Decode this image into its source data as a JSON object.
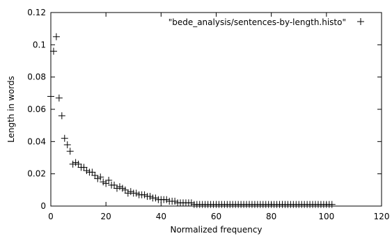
{
  "chart_data": {
    "type": "scatter",
    "xlabel": "Normalized frequency",
    "ylabel": "Length in words",
    "xlim": [
      0,
      120
    ],
    "ylim": [
      0,
      0.12
    ],
    "xticks": [
      "0",
      "20",
      "40",
      "60",
      "80",
      "100",
      "120"
    ],
    "yticks": [
      "0",
      "0.02",
      "0.04",
      "0.06",
      "0.08",
      "0.1",
      "0.12"
    ],
    "grid": false,
    "legend_position": "top-right",
    "marker": "plus",
    "series": [
      {
        "name": "\"bede_analysis/sentences-by-length.histo\"",
        "x": [
          0,
          1,
          2,
          3,
          4,
          5,
          6,
          7,
          8,
          9,
          10,
          11,
          12,
          13,
          14,
          15,
          16,
          17,
          18,
          19,
          20,
          21,
          22,
          23,
          24,
          25,
          26,
          27,
          28,
          29,
          30,
          31,
          32,
          33,
          34,
          35,
          36,
          37,
          38,
          39,
          40,
          41,
          42,
          43,
          44,
          45,
          46,
          47,
          48,
          49,
          50,
          51,
          52,
          53,
          54,
          55,
          56,
          57,
          58,
          59,
          60,
          61,
          62,
          63,
          64,
          65,
          66,
          67,
          68,
          69,
          70,
          71,
          72,
          73,
          74,
          75,
          76,
          77,
          78,
          79,
          80,
          81,
          82,
          83,
          84,
          85,
          86,
          87,
          88,
          89,
          90,
          91,
          92,
          93,
          94,
          95,
          96,
          97,
          98,
          99,
          100,
          101,
          102
        ],
        "y": [
          0.068,
          0.096,
          0.105,
          0.067,
          0.056,
          0.042,
          0.038,
          0.034,
          0.026,
          0.027,
          0.026,
          0.024,
          0.024,
          0.022,
          0.021,
          0.021,
          0.019,
          0.017,
          0.018,
          0.015,
          0.014,
          0.016,
          0.013,
          0.013,
          0.011,
          0.012,
          0.011,
          0.01,
          0.008,
          0.009,
          0.008,
          0.008,
          0.007,
          0.007,
          0.007,
          0.006,
          0.006,
          0.005,
          0.005,
          0.004,
          0.004,
          0.004,
          0.004,
          0.003,
          0.003,
          0.003,
          0.002,
          0.002,
          0.002,
          0.002,
          0.002,
          0.002,
          0.001,
          0.001,
          0.001,
          0.001,
          0.001,
          0.001,
          0.001,
          0.001,
          0.001,
          0.001,
          0.001,
          0.001,
          0.001,
          0.001,
          0.001,
          0.001,
          0.001,
          0.001,
          0.001,
          0.001,
          0.001,
          0.001,
          0.001,
          0.001,
          0.001,
          0.001,
          0.001,
          0.001,
          0.001,
          0.001,
          0.001,
          0.001,
          0.001,
          0.001,
          0.001,
          0.001,
          0.001,
          0.001,
          0.001,
          0.001,
          0.001,
          0.001,
          0.001,
          0.001,
          0.001,
          0.001,
          0.001,
          0.001,
          0.001,
          0.001,
          0.001
        ]
      }
    ]
  }
}
